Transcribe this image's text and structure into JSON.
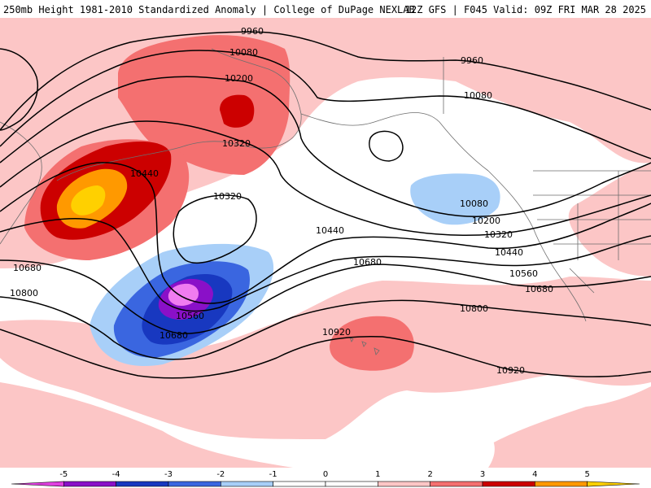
{
  "header": {
    "title": "250mb Height 1981-2010 Standardized Anomaly | College of DuPage NEXLAB",
    "run_info": "12Z GFS | F045 Valid: 09Z FRI MAR 28 2025"
  },
  "map": {
    "contour_labels": [
      {
        "id": "c9960a",
        "text": "9960"
      },
      {
        "id": "c9960b",
        "text": "9960"
      },
      {
        "id": "c10080a",
        "text": "10080"
      },
      {
        "id": "c10080b",
        "text": "10080"
      },
      {
        "id": "c10080c",
        "text": "10080"
      },
      {
        "id": "c10200a",
        "text": "10200"
      },
      {
        "id": "c10200b",
        "text": "10200"
      },
      {
        "id": "c10320a",
        "text": "10320"
      },
      {
        "id": "c10320b",
        "text": "10320"
      },
      {
        "id": "c10320c",
        "text": "10320"
      },
      {
        "id": "c10440a",
        "text": "10440"
      },
      {
        "id": "c10440b",
        "text": "10440"
      },
      {
        "id": "c10440c",
        "text": "10440"
      },
      {
        "id": "c10560a",
        "text": "10560"
      },
      {
        "id": "c10560b",
        "text": "10560"
      },
      {
        "id": "c10680a",
        "text": "10680"
      },
      {
        "id": "c10680b",
        "text": "10680"
      },
      {
        "id": "c10680c",
        "text": "10680"
      },
      {
        "id": "c10680d",
        "text": "10680"
      },
      {
        "id": "c10800a",
        "text": "10800"
      },
      {
        "id": "c10800b",
        "text": "10800"
      },
      {
        "id": "c10920a",
        "text": "10920"
      },
      {
        "id": "c10920b",
        "text": "10920"
      }
    ]
  },
  "colorbar": {
    "labels": [
      "-5",
      "-4",
      "-3",
      "-2",
      "-1",
      "0",
      "1",
      "2",
      "3",
      "4",
      "5"
    ],
    "colors": [
      "#e040e0",
      "#8a10c8",
      "#1838c0",
      "#3a66e0",
      "#a8cff8",
      "#ffffff",
      "#ffffff",
      "#fcc6c6",
      "#f47070",
      "#cc0000",
      "#ff9900",
      "#ffd000"
    ]
  }
}
